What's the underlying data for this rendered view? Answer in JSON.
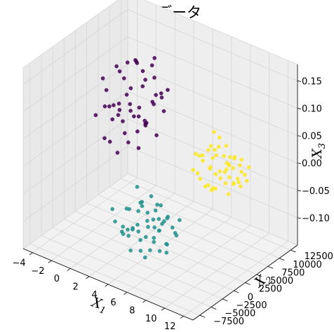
{
  "chart_data": {
    "type": "scatter",
    "projection": "3d",
    "title": "実験用データ",
    "xlabel": "X",
    "xlabel_sub": "1",
    "ylabel": "X",
    "ylabel_sub": "2",
    "zlabel": "X",
    "zlabel_sub": "3",
    "xlim": [
      -5,
      13
    ],
    "ylim": [
      -9000,
      14000
    ],
    "zlim": [
      -0.15,
      0.18
    ],
    "x_ticks": [
      "−4",
      "−2",
      "0",
      "2",
      "4",
      "6",
      "8",
      "10",
      "12"
    ],
    "y_ticks": [
      "−7500",
      "−5000",
      "−2500",
      "0",
      "2500",
      "5000",
      "7500",
      "10000",
      "12500"
    ],
    "z_ticks": [
      "−0.10",
      "−0.05",
      "0.00",
      "0.05",
      "0.10",
      "0.15"
    ],
    "grid": true,
    "colors": {
      "cluster_purple": "#440154",
      "cluster_teal": "#21918c",
      "cluster_yellow": "#fde725",
      "pane_face": "#f2f2f2",
      "grid_line": "#d6d6d6"
    },
    "series": [
      {
        "color": "#440154",
        "points": [
          [
            -3.5,
            6200,
            0.06
          ],
          [
            -2.8,
            5400,
            0.04
          ],
          [
            -2.4,
            7800,
            0.08
          ],
          [
            -1.9,
            4200,
            0.03
          ],
          [
            -1.2,
            5900,
            0.07
          ],
          [
            -0.8,
            8600,
            0.1
          ],
          [
            -0.3,
            3600,
            0.02
          ],
          [
            0.1,
            6700,
            0.09
          ],
          [
            0.6,
            4800,
            0.05
          ],
          [
            1.1,
            7200,
            0.11
          ],
          [
            1.5,
            2900,
            0.01
          ],
          [
            2.0,
            5200,
            0.08
          ],
          [
            -2.2,
            3100,
            0.0
          ],
          [
            -1.6,
            6900,
            0.12
          ],
          [
            -0.5,
            2400,
            -0.01
          ],
          [
            0.3,
            8900,
            0.13
          ],
          [
            0.9,
            3900,
            0.03
          ],
          [
            1.8,
            6100,
            0.09
          ],
          [
            -3.0,
            7400,
            0.1
          ],
          [
            -1.4,
            4600,
            0.06
          ],
          [
            -0.1,
            5700,
            0.14
          ],
          [
            0.8,
            2100,
            0.02
          ],
          [
            1.4,
            8200,
            0.07
          ],
          [
            -2.6,
            4000,
            0.05
          ],
          [
            -0.7,
            7600,
            0.04
          ],
          [
            0.4,
            3300,
            0.08
          ],
          [
            1.2,
            5000,
            0.12
          ],
          [
            2.3,
            6800,
            0.06
          ],
          [
            -1.0,
            1800,
            0.01
          ],
          [
            -3.3,
            5000,
            0.09
          ],
          [
            -0.2,
            9400,
            0.11
          ],
          [
            0.7,
            6300,
            0.03
          ],
          [
            1.9,
            3600,
            0.05
          ],
          [
            -2.0,
            8400,
            0.02
          ],
          [
            -1.1,
            2800,
            0.07
          ],
          [
            0.0,
            4300,
            0.1
          ],
          [
            1.0,
            7900,
            0.0
          ],
          [
            2.2,
            4500,
            0.09
          ],
          [
            -2.9,
            2600,
            0.04
          ],
          [
            -0.4,
            6500,
            0.13
          ],
          [
            0.5,
            1500,
            0.06
          ],
          [
            1.6,
            9100,
            0.08
          ],
          [
            -1.8,
            5600,
            0.11
          ],
          [
            -0.9,
            3400,
            0.05
          ],
          [
            0.2,
            7100,
            0.02
          ],
          [
            1.3,
            2300,
            0.07
          ],
          [
            2.5,
            5800,
            0.1
          ],
          [
            -2.3,
            6600,
            0.03
          ],
          [
            -1.3,
            8000,
            0.12
          ],
          [
            0.9,
            5500,
            0.04
          ]
        ]
      },
      {
        "color": "#21918c",
        "points": [
          [
            3.2,
            -5800,
            -0.06
          ],
          [
            3.8,
            -4500,
            -0.04
          ],
          [
            4.4,
            -6500,
            -0.07
          ],
          [
            5.1,
            -3800,
            -0.03
          ],
          [
            5.6,
            -5200,
            -0.08
          ],
          [
            6.2,
            -6900,
            -0.05
          ],
          [
            6.8,
            -3200,
            -0.02
          ],
          [
            7.4,
            -4700,
            -0.09
          ],
          [
            8.0,
            -6100,
            -0.04
          ],
          [
            8.6,
            -3500,
            -0.06
          ],
          [
            4.0,
            -2600,
            -0.01
          ],
          [
            4.9,
            -5900,
            -0.1
          ],
          [
            5.8,
            -4100,
            -0.05
          ],
          [
            6.5,
            -2900,
            -0.07
          ],
          [
            7.1,
            -5500,
            -0.03
          ],
          [
            7.8,
            -3900,
            -0.08
          ],
          [
            8.4,
            -2400,
            -0.04
          ],
          [
            3.5,
            -3300,
            -0.05
          ],
          [
            4.6,
            -7200,
            -0.06
          ],
          [
            5.3,
            -2200,
            -0.02
          ],
          [
            6.0,
            -5000,
            -0.11
          ],
          [
            6.7,
            -6300,
            -0.06
          ],
          [
            7.3,
            -2700,
            -0.04
          ],
          [
            8.2,
            -4900,
            -0.07
          ],
          [
            3.9,
            -4300,
            -0.09
          ],
          [
            4.7,
            -3000,
            -0.03
          ],
          [
            5.5,
            -6700,
            -0.05
          ],
          [
            6.3,
            -3700,
            -0.08
          ],
          [
            7.0,
            -4400,
            -0.01
          ],
          [
            7.7,
            -6600,
            -0.06
          ],
          [
            8.8,
            -4200,
            -0.05
          ],
          [
            3.4,
            -6800,
            -0.03
          ],
          [
            4.3,
            -5300,
            -0.07
          ],
          [
            5.0,
            -4600,
            -0.06
          ],
          [
            5.9,
            -2500,
            -0.04
          ],
          [
            6.6,
            -5700,
            -0.02
          ],
          [
            7.5,
            -3400,
            -0.1
          ],
          [
            8.1,
            -5600,
            -0.03
          ],
          [
            4.1,
            -3800,
            -0.08
          ],
          [
            5.4,
            -3100,
            -0.07
          ],
          [
            6.1,
            -6200,
            -0.09
          ],
          [
            6.9,
            -4800,
            -0.05
          ],
          [
            7.6,
            -2300,
            -0.06
          ],
          [
            8.5,
            -6000,
            -0.02
          ],
          [
            4.8,
            -4000,
            -0.04
          ],
          [
            5.7,
            -5400,
            -0.01
          ],
          [
            6.4,
            -2800,
            -0.05
          ],
          [
            7.2,
            -6400,
            -0.08
          ],
          [
            3.7,
            -5100,
            -0.07
          ],
          [
            7.9,
            -4100,
            -0.03
          ]
        ]
      },
      {
        "color": "#fde725",
        "points": [
          [
            7.8,
            3200,
            0.04
          ],
          [
            8.3,
            1800,
            0.02
          ],
          [
            8.8,
            4500,
            0.05
          ],
          [
            9.2,
            2600,
            0.03
          ],
          [
            9.7,
            5200,
            0.06
          ],
          [
            10.2,
            1200,
            0.01
          ],
          [
            10.6,
            3900,
            0.04
          ],
          [
            11.1,
            2100,
            0.02
          ],
          [
            11.5,
            4800,
            0.05
          ],
          [
            12.0,
            2900,
            0.03
          ],
          [
            8.1,
            5800,
            0.07
          ],
          [
            8.6,
            3500,
            -0.01
          ],
          [
            9.0,
            900,
            0.02
          ],
          [
            9.5,
            4100,
            0.08
          ],
          [
            9.9,
            2400,
            0.0
          ],
          [
            10.4,
            5500,
            0.04
          ],
          [
            10.8,
            1600,
            0.03
          ],
          [
            11.3,
            3700,
            0.06
          ],
          [
            11.8,
            1300,
            0.01
          ],
          [
            12.3,
            4300,
            0.02
          ],
          [
            7.9,
            2200,
            0.05
          ],
          [
            8.4,
            4900,
            0.03
          ],
          [
            8.9,
            2900,
            0.06
          ],
          [
            9.3,
            6100,
            0.02
          ],
          [
            9.8,
            3300,
            0.07
          ],
          [
            10.3,
            700,
            0.01
          ],
          [
            10.7,
            4600,
            0.03
          ],
          [
            11.2,
            2700,
            0.05
          ],
          [
            11.6,
            5300,
            0.02
          ],
          [
            12.1,
            3500,
            0.04
          ],
          [
            8.2,
            1000,
            0.03
          ],
          [
            8.7,
            3900,
            0.06
          ],
          [
            9.1,
            5000,
            0.01
          ],
          [
            9.6,
            1900,
            0.04
          ],
          [
            10.0,
            4200,
            0.02
          ],
          [
            10.5,
            3000,
            0.06
          ],
          [
            10.9,
            5700,
            0.03
          ],
          [
            11.4,
            1700,
            0.05
          ],
          [
            11.9,
            3800,
            0.01
          ],
          [
            12.4,
            2300,
            0.03
          ],
          [
            8.0,
            4100,
            -0.02
          ],
          [
            8.5,
            2500,
            0.04
          ],
          [
            9.4,
            3600,
            0.05
          ],
          [
            10.1,
            2000,
            0.03
          ],
          [
            10.6,
            4900,
            0.0
          ],
          [
            11.0,
            3300,
            0.06
          ],
          [
            11.7,
            2600,
            0.02
          ],
          [
            12.2,
            5000,
            0.04
          ],
          [
            9.0,
            1400,
            0.06
          ],
          [
            10.8,
            3600,
            0.02
          ]
        ]
      }
    ]
  }
}
